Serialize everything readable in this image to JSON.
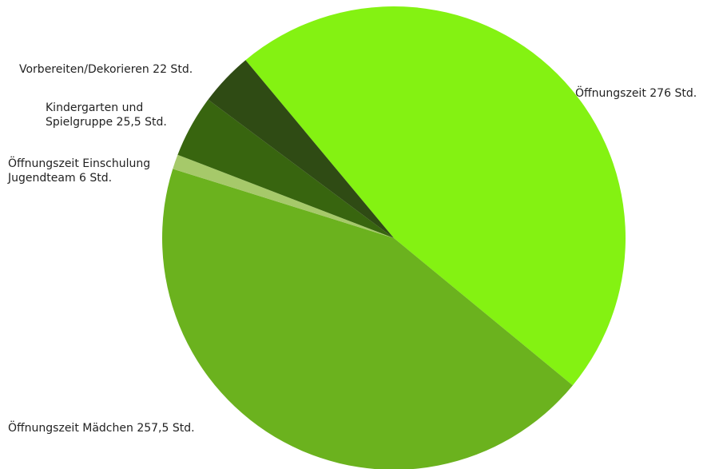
{
  "chart_data": {
    "type": "pie",
    "categories": [
      "Öffnungszeit",
      "Öffnungszeit Mädchen",
      "Öffnungszeit Einschulung Jugendteam",
      "Kindergarten und Spielgruppe",
      "Vorbereiten/Dekorieren"
    ],
    "values": [
      276,
      257.5,
      6,
      25.5,
      22
    ],
    "value_labels": [
      "276 Std.",
      "257,5 Std.",
      "6 Std.",
      "25,5 Std.",
      "22 Std."
    ],
    "colors": [
      "#84f212",
      "#6bb21e",
      "#a6c96a",
      "#38650f",
      "#2f4b14"
    ]
  }
}
